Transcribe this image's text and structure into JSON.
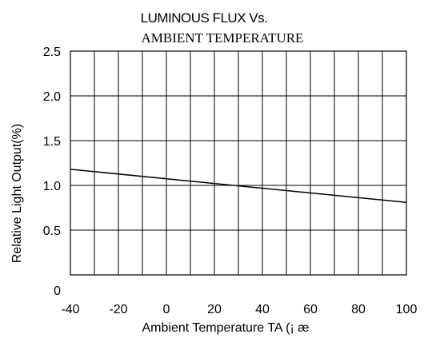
{
  "chart_data": {
    "type": "line",
    "title_line1": "LUMINOUS FLUX Vs.",
    "title_line2": "AMBIENT TEMPERATURE",
    "xlabel": "Ambient Temperature TA (¡ æ",
    "ylabel": "Relative Light Output(%)",
    "xlim": [
      -40,
      100
    ],
    "ylim": [
      0,
      2.5
    ],
    "x_ticks": [
      "-40",
      "-20",
      "0",
      "20",
      "40",
      "60",
      "80",
      "100"
    ],
    "x_tick_values": [
      -40,
      -20,
      0,
      20,
      40,
      60,
      80,
      100
    ],
    "y_ticks": [
      "0",
      "0.5",
      "1.0",
      "1.5",
      "2.0",
      "2.5"
    ],
    "y_tick_values": [
      0,
      0.5,
      1.0,
      1.5,
      2.0,
      2.5
    ],
    "grid": true,
    "vertical_grid_step": 10,
    "horizontal_grid_step": 0.5,
    "series": [
      {
        "x": [
          -40,
          100
        ],
        "y": [
          1.18,
          0.81
        ]
      }
    ]
  }
}
